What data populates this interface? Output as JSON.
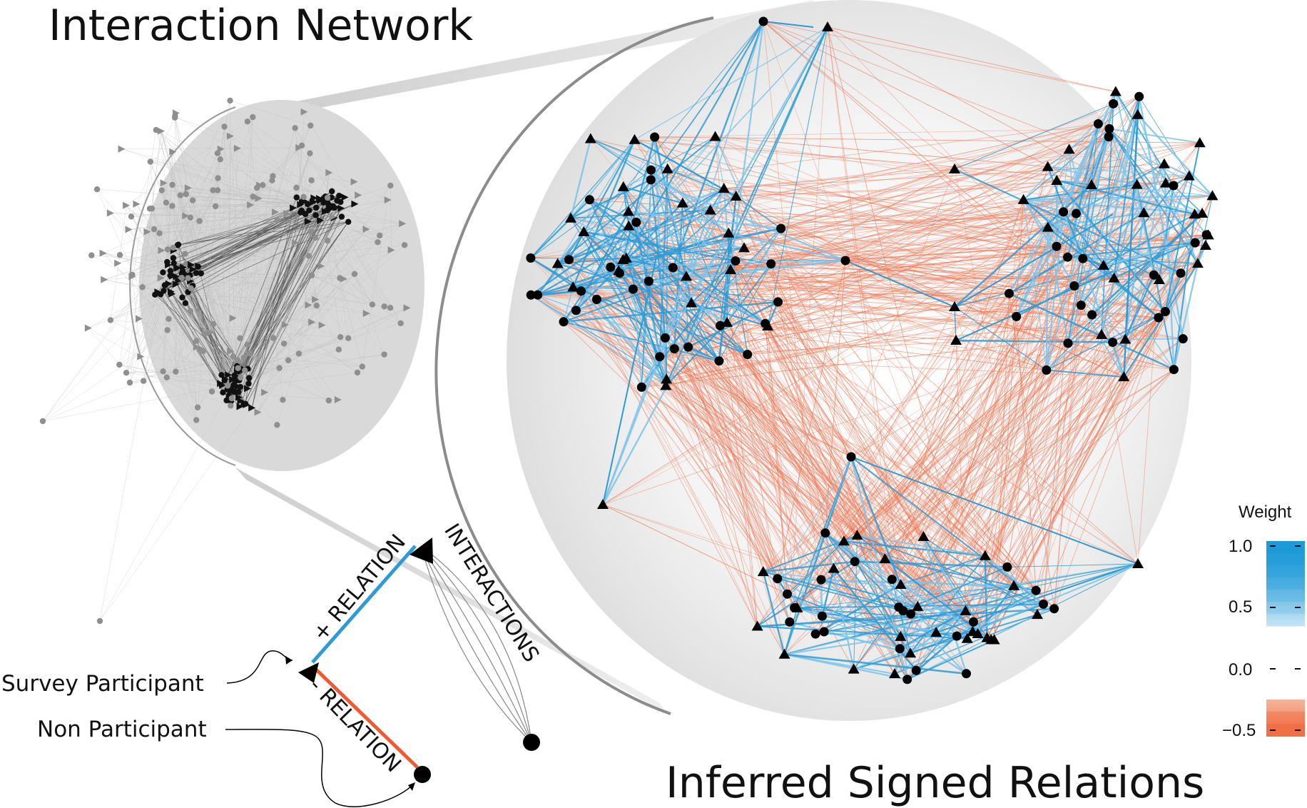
{
  "titles": {
    "left": "Interaction Network",
    "right": "Inferred Signed Relations"
  },
  "legend": {
    "survey_participant": "Survey Participant",
    "non_participant": "Non Participant",
    "pos_relation": "+ RELATION",
    "neg_relation": "- RELATION",
    "interactions": "INTERACTIONS"
  },
  "colorbar": {
    "title": "Weight",
    "ticks": [
      "1.0",
      "0.5",
      "0.0",
      "−0.5"
    ],
    "tick_values": [
      1.0,
      0.5,
      0.0,
      -0.5
    ],
    "positive_color": "#2a9fd8",
    "negative_color": "#f07a55"
  },
  "colors": {
    "positive_edge": "#2e9bd6",
    "negative_edge": "#ef7450",
    "node": "#000000",
    "interaction_edge": "#777777",
    "lens": "#d6d6d6"
  }
}
